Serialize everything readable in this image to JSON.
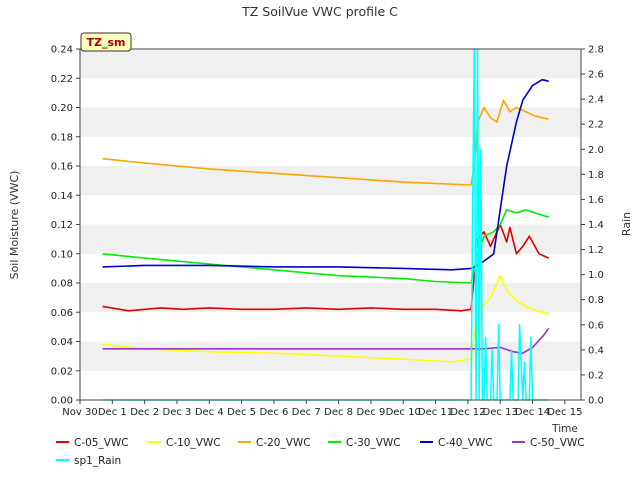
{
  "chart_data": {
    "type": "line",
    "title": "TZ SoilVue VWC profile C",
    "badge": "TZ_sm",
    "xlabel": "Time",
    "ylabel": "Soil Moisture (VWC)",
    "y2label": "Rain",
    "xlim": [
      0,
      15.5
    ],
    "ylim": [
      0,
      0.24
    ],
    "y2lim": [
      0,
      2.8
    ],
    "grid": "horizontal-bands",
    "legend_position": "bottom",
    "x_ticks": [
      {
        "x": 0,
        "label": "Nov 30"
      },
      {
        "x": 1,
        "label": "Dec 1"
      },
      {
        "x": 2,
        "label": "Dec 2"
      },
      {
        "x": 3,
        "label": "Dec 3"
      },
      {
        "x": 4,
        "label": "Dec 4"
      },
      {
        "x": 5,
        "label": "Dec 5"
      },
      {
        "x": 6,
        "label": "Dec 6"
      },
      {
        "x": 7,
        "label": "Dec 7"
      },
      {
        "x": 8,
        "label": "Dec 8"
      },
      {
        "x": 9,
        "label": "Dec 9"
      },
      {
        "x": 10,
        "label": "Dec 10"
      },
      {
        "x": 11,
        "label": "Dec 11"
      },
      {
        "x": 12,
        "label": "Dec 12"
      },
      {
        "x": 13,
        "label": "Dec 13"
      },
      {
        "x": 14,
        "label": "Dec 14"
      },
      {
        "x": 15,
        "label": "Dec 15"
      }
    ],
    "y_ticks": [
      "0.00",
      "0.02",
      "0.04",
      "0.06",
      "0.08",
      "0.10",
      "0.12",
      "0.14",
      "0.16",
      "0.18",
      "0.20",
      "0.22",
      "0.24"
    ],
    "y2_ticks": [
      "0.0",
      "0.2",
      "0.4",
      "0.6",
      "0.8",
      "1.0",
      "1.2",
      "1.4",
      "1.6",
      "1.8",
      "2.0",
      "2.2",
      "2.4",
      "2.6",
      "2.8"
    ],
    "series": [
      {
        "name": "C-05_VWC",
        "color": "#e00000",
        "axis": "left",
        "x": [
          0.7,
          1.5,
          2.5,
          3.2,
          4,
          5,
          6,
          7,
          8,
          9,
          10,
          11,
          11.8,
          12.1,
          12.3,
          12.5,
          12.7,
          13,
          13.2,
          13.3,
          13.5,
          13.7,
          13.9,
          14.2,
          14.5
        ],
        "y": [
          0.064,
          0.061,
          0.063,
          0.062,
          0.063,
          0.062,
          0.062,
          0.063,
          0.062,
          0.063,
          0.062,
          0.062,
          0.061,
          0.062,
          0.11,
          0.115,
          0.105,
          0.12,
          0.108,
          0.118,
          0.1,
          0.105,
          0.112,
          0.1,
          0.097
        ]
      },
      {
        "name": "C-10_VWC",
        "color": "#ffff00",
        "axis": "left",
        "x": [
          0.7,
          2,
          4,
          6,
          8,
          10,
          11.5,
          12.1,
          12.3,
          12.5,
          12.7,
          13,
          13.2,
          13.5,
          13.7,
          14,
          14.5
        ],
        "y": [
          0.038,
          0.035,
          0.033,
          0.032,
          0.03,
          0.028,
          0.026,
          0.028,
          0.06,
          0.065,
          0.07,
          0.085,
          0.075,
          0.068,
          0.065,
          0.062,
          0.059
        ]
      },
      {
        "name": "C-20_VWC",
        "color": "#ffa500",
        "axis": "left",
        "x": [
          0.7,
          2,
          4,
          6,
          8,
          10,
          12.1,
          12.2,
          12.3,
          12.5,
          12.7,
          12.9,
          13.1,
          13.3,
          13.5,
          13.8,
          14.1,
          14.5
        ],
        "y": [
          0.165,
          0.162,
          0.158,
          0.155,
          0.152,
          0.149,
          0.147,
          0.16,
          0.19,
          0.2,
          0.193,
          0.19,
          0.205,
          0.197,
          0.2,
          0.197,
          0.194,
          0.192
        ]
      },
      {
        "name": "C-30_VWC",
        "color": "#00ee00",
        "axis": "left",
        "x": [
          0.7,
          2,
          3,
          4,
          5,
          6,
          7,
          8,
          9,
          10,
          11,
          12.1,
          12.3,
          12.5,
          12.8,
          13,
          13.2,
          13.5,
          13.8,
          14.2,
          14.5
        ],
        "y": [
          0.1,
          0.097,
          0.095,
          0.093,
          0.091,
          0.089,
          0.087,
          0.085,
          0.084,
          0.083,
          0.081,
          0.08,
          0.1,
          0.112,
          0.115,
          0.12,
          0.13,
          0.128,
          0.13,
          0.127,
          0.125
        ]
      },
      {
        "name": "C-40_VWC",
        "color": "#0000cc",
        "axis": "left",
        "x": [
          0.7,
          2,
          4,
          6,
          8,
          10,
          11.5,
          12.1,
          12.3,
          12.5,
          12.8,
          13,
          13.2,
          13.5,
          13.7,
          14,
          14.3,
          14.5
        ],
        "y": [
          0.091,
          0.092,
          0.092,
          0.091,
          0.091,
          0.09,
          0.089,
          0.09,
          0.092,
          0.095,
          0.1,
          0.13,
          0.16,
          0.19,
          0.205,
          0.215,
          0.219,
          0.218
        ]
      },
      {
        "name": "C-50_VWC",
        "color": "#9933cc",
        "axis": "left",
        "x": [
          0.7,
          2,
          4,
          6,
          8,
          10,
          12,
          12.5,
          13,
          13.4,
          13.7,
          14,
          14.3,
          14.5
        ],
        "y": [
          0.035,
          0.035,
          0.035,
          0.035,
          0.035,
          0.035,
          0.035,
          0.035,
          0.036,
          0.033,
          0.032,
          0.036,
          0.043,
          0.049
        ]
      },
      {
        "name": "sp1_Rain",
        "color": "#00ffff",
        "axis": "right",
        "x": [
          0.7,
          12.1,
          12.15,
          12.2,
          12.25,
          12.3,
          12.35,
          12.4,
          12.45,
          12.5,
          12.55,
          12.6,
          12.7,
          12.75,
          12.8,
          12.9,
          12.95,
          13.0,
          13.05,
          13.1,
          13.2,
          13.3,
          13.35,
          13.4,
          13.5,
          13.55,
          13.6,
          13.7,
          13.75,
          13.8,
          13.9,
          13.95,
          14.0,
          14.1,
          14.5
        ],
        "y": [
          0.0,
          0.0,
          1.6,
          2.8,
          0.0,
          2.8,
          0.0,
          2.0,
          0.0,
          0.0,
          0.5,
          0.0,
          0.0,
          0.4,
          0.0,
          0.0,
          0.6,
          0.0,
          0.0,
          0.0,
          0.0,
          0.0,
          0.4,
          0.0,
          0.0,
          0.0,
          0.6,
          0.0,
          0.3,
          0.0,
          0.0,
          0.5,
          0.0,
          0.0,
          0.0
        ]
      }
    ]
  }
}
